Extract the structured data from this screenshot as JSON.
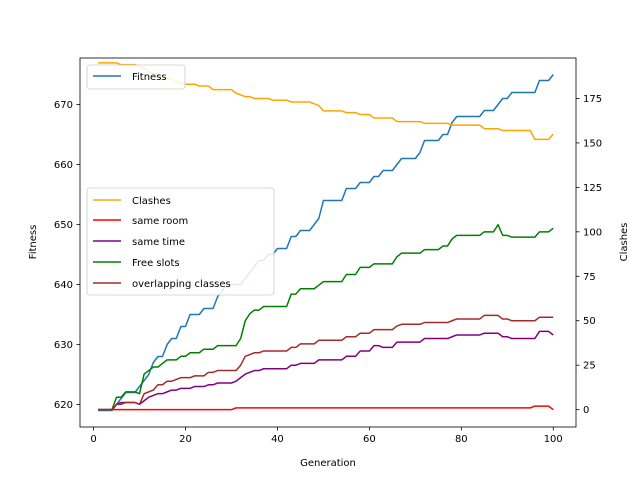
{
  "chart_data": {
    "type": "line",
    "x": [
      1,
      2,
      3,
      4,
      5,
      6,
      7,
      8,
      9,
      10,
      11,
      12,
      13,
      14,
      15,
      16,
      17,
      18,
      19,
      20,
      21,
      22,
      23,
      24,
      25,
      26,
      27,
      28,
      29,
      30,
      31,
      32,
      33,
      34,
      35,
      36,
      37,
      38,
      39,
      40,
      41,
      42,
      43,
      44,
      45,
      46,
      47,
      48,
      49,
      50,
      51,
      52,
      53,
      54,
      55,
      56,
      57,
      58,
      59,
      60,
      61,
      62,
      63,
      64,
      65,
      66,
      67,
      68,
      69,
      70,
      71,
      72,
      73,
      74,
      75,
      76,
      77,
      78,
      79,
      80,
      81,
      82,
      83,
      84,
      85,
      86,
      87,
      88,
      89,
      90,
      91,
      92,
      93,
      94,
      95,
      96,
      97,
      98,
      99,
      100
    ],
    "xlabel": "Generation",
    "xlim": [
      -2.95,
      104.95
    ],
    "xticks": [
      0,
      20,
      40,
      60,
      80,
      100
    ],
    "left_axis": {
      "label": "Fitness",
      "ylim": [
        616.25,
        677.75
      ],
      "ticks": [
        620,
        630,
        640,
        650,
        660,
        670
      ]
    },
    "right_axis": {
      "label": "Clashes",
      "ylim": [
        -9.75,
        197.75
      ],
      "ticks": [
        0,
        25,
        50,
        75,
        100,
        125,
        150,
        175
      ]
    },
    "series": [
      {
        "name": "Fitness",
        "axis": "left",
        "color": "#1f77b4",
        "values": [
          619,
          619,
          619,
          619,
          620,
          621,
          622,
          622,
          622,
          623,
          624,
          625,
          627,
          628,
          628,
          630,
          631,
          631,
          633,
          633,
          635,
          635,
          635,
          636,
          636,
          636,
          638,
          639,
          640,
          640,
          640,
          640,
          641,
          642,
          643,
          644,
          644,
          645,
          645,
          646,
          646,
          646,
          648,
          648,
          649,
          649,
          649,
          650,
          651,
          654,
          654,
          654,
          654,
          654,
          656,
          656,
          656,
          657,
          657,
          657,
          658,
          658,
          659,
          659,
          659,
          660,
          661,
          661,
          661,
          661,
          662,
          664,
          664,
          664,
          664,
          665,
          665,
          667,
          668,
          668,
          668,
          668,
          668,
          668,
          669,
          669,
          669,
          670,
          671,
          671,
          672,
          672,
          672,
          672,
          672,
          672,
          674,
          674,
          674,
          675
        ]
      },
      {
        "name": "Clashes",
        "axis": "right",
        "color": "#ffa500",
        "values": [
          195,
          195,
          195,
          195,
          195,
          194,
          194,
          194,
          194,
          193,
          192,
          190,
          189,
          189,
          186,
          186,
          186,
          184,
          184,
          183,
          183,
          183,
          182,
          182,
          182,
          180,
          180,
          180,
          180,
          180,
          178,
          177,
          176,
          176,
          175,
          175,
          175,
          175,
          174,
          174,
          174,
          174,
          173,
          173,
          173,
          173,
          173,
          172,
          171,
          168,
          168,
          168,
          168,
          168,
          167,
          167,
          167,
          166,
          166,
          166,
          164,
          164,
          164,
          164,
          164,
          162,
          162,
          162,
          162,
          162,
          162,
          161,
          161,
          161,
          161,
          161,
          161,
          160,
          160,
          160,
          160,
          160,
          160,
          160,
          158,
          158,
          158,
          158,
          157,
          157,
          157,
          157,
          157,
          157,
          157,
          152,
          152,
          152,
          152,
          155
        ]
      },
      {
        "name": "same room",
        "axis": "right",
        "color": "#ff0000",
        "values": [
          0,
          0,
          0,
          0,
          0,
          0,
          0,
          0,
          0,
          0,
          0,
          0,
          0,
          0,
          0,
          0,
          0,
          0,
          0,
          0,
          0,
          0,
          0,
          0,
          0,
          0,
          0,
          0,
          0,
          0,
          1,
          1,
          1,
          1,
          1,
          1,
          1,
          1,
          1,
          1,
          1,
          1,
          1,
          1,
          1,
          1,
          1,
          1,
          1,
          1,
          1,
          1,
          1,
          1,
          1,
          1,
          1,
          1,
          1,
          1,
          1,
          1,
          1,
          1,
          1,
          1,
          1,
          1,
          1,
          1,
          1,
          1,
          1,
          1,
          1,
          1,
          1,
          1,
          1,
          1,
          1,
          1,
          1,
          1,
          1,
          1,
          1,
          1,
          1,
          1,
          1,
          1,
          1,
          1,
          1,
          2,
          2,
          2,
          2,
          0
        ]
      },
      {
        "name": "same time",
        "axis": "right",
        "color": "#800080",
        "values": [
          0,
          0,
          0,
          0,
          3,
          4,
          4,
          4,
          4,
          3,
          5,
          7,
          8,
          9,
          9,
          10,
          11,
          11,
          12,
          12,
          12,
          13,
          13,
          13,
          14,
          14,
          15,
          15,
          15,
          15,
          16,
          18,
          20,
          21,
          22,
          22,
          23,
          23,
          23,
          23,
          23,
          23,
          25,
          25,
          26,
          26,
          26,
          26,
          28,
          28,
          28,
          28,
          28,
          28,
          30,
          30,
          30,
          33,
          33,
          33,
          36,
          36,
          35,
          35,
          35,
          38,
          38,
          38,
          38,
          38,
          38,
          40,
          40,
          40,
          40,
          40,
          40,
          41,
          42,
          42,
          42,
          42,
          42,
          42,
          43,
          43,
          43,
          43,
          41,
          41,
          40,
          40,
          40,
          40,
          40,
          40,
          44,
          44,
          44,
          42
        ]
      },
      {
        "name": "Free slots",
        "axis": "right",
        "color": "#008000",
        "values": [
          0,
          0,
          0,
          0,
          7,
          7,
          10,
          10,
          10,
          9,
          20,
          22,
          24,
          24,
          26,
          28,
          28,
          28,
          30,
          30,
          32,
          32,
          32,
          34,
          34,
          34,
          36,
          36,
          36,
          36,
          36,
          40,
          50,
          54,
          56,
          56,
          58,
          58,
          58,
          58,
          58,
          58,
          65,
          65,
          68,
          68,
          68,
          68,
          70,
          72,
          72,
          72,
          72,
          72,
          76,
          76,
          76,
          80,
          80,
          80,
          82,
          82,
          82,
          82,
          82,
          86,
          88,
          88,
          88,
          88,
          88,
          90,
          90,
          90,
          90,
          92,
          92,
          96,
          98,
          98,
          98,
          98,
          98,
          98,
          100,
          100,
          100,
          104,
          98,
          98,
          97,
          97,
          97,
          97,
          97,
          97,
          100,
          100,
          100,
          102
        ]
      },
      {
        "name": "overlapping classes",
        "axis": "right",
        "color": "#a52a2a",
        "values": [
          0,
          0,
          0,
          0,
          3,
          3,
          4,
          4,
          4,
          3,
          9,
          10,
          11,
          14,
          14,
          16,
          16,
          17,
          18,
          18,
          18,
          19,
          19,
          19,
          21,
          21,
          22,
          22,
          22,
          22,
          22,
          25,
          30,
          31,
          32,
          32,
          33,
          33,
          33,
          33,
          33,
          33,
          35,
          35,
          37,
          37,
          37,
          37,
          39,
          39,
          39,
          39,
          39,
          39,
          41,
          41,
          41,
          43,
          43,
          43,
          45,
          45,
          45,
          45,
          45,
          47,
          48,
          48,
          48,
          48,
          48,
          49,
          49,
          49,
          49,
          49,
          49,
          50,
          51,
          51,
          51,
          51,
          51,
          51,
          53,
          53,
          53,
          53,
          51,
          51,
          50,
          50,
          50,
          50,
          50,
          50,
          52,
          52,
          52,
          52
        ]
      }
    ],
    "legends": [
      {
        "location": "upper-left",
        "entries": [
          "Fitness"
        ]
      },
      {
        "location": "center-left",
        "entries": [
          "Clashes",
          "same room",
          "same time",
          "Free slots",
          "overlapping classes"
        ]
      }
    ]
  }
}
